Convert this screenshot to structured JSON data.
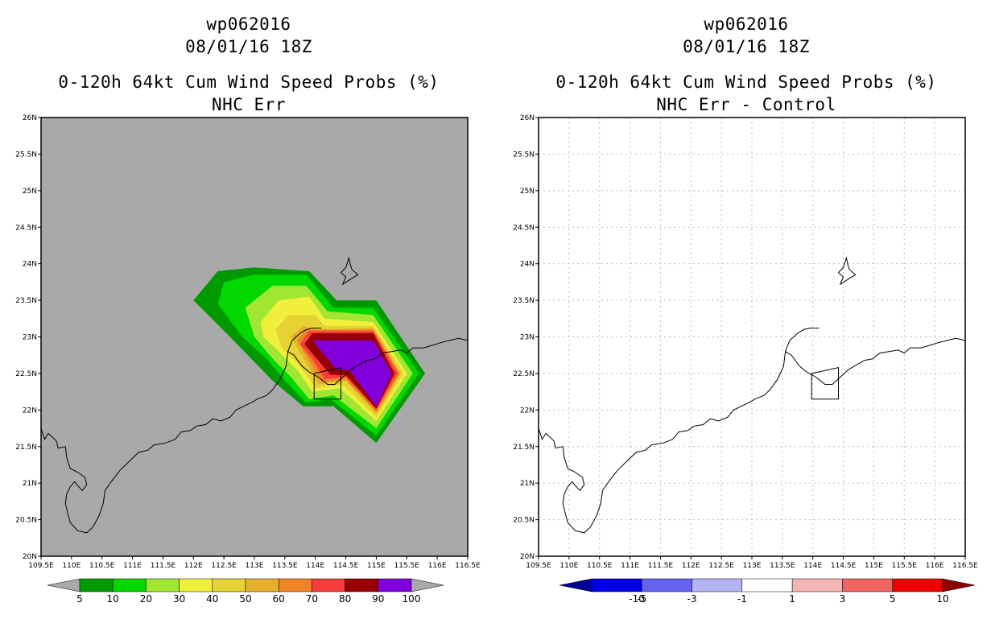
{
  "panels": [
    {
      "storm_id": "wp062016",
      "datetime": "08/01/16 18Z",
      "product": "0-120h 64kt Cum Wind Speed Probs (%)",
      "subtitle": "NHC Err",
      "background": "#a9a9a9",
      "grid": false,
      "colorbar": {
        "labels": [
          "5",
          "10",
          "20",
          "30",
          "40",
          "50",
          "60",
          "70",
          "80",
          "90",
          "100"
        ],
        "colors": [
          "#009a00",
          "#00d800",
          "#a0e632",
          "#f0f03c",
          "#e6d232",
          "#e6af2d",
          "#f08228",
          "#fa3c3c",
          "#960000",
          "#8200dc"
        ],
        "under_color": "#a9a9a9",
        "over_color": "#a9a9a9"
      }
    },
    {
      "storm_id": "wp062016",
      "datetime": "08/01/16 18Z",
      "product": "0-120h 64kt Cum Wind Speed Probs (%)",
      "subtitle": "NHC Err - Control",
      "background": "#ffffff",
      "grid": true,
      "colorbar": {
        "labels": [
          "-10",
          "-5",
          "-3",
          "-1",
          "1",
          "3",
          "5",
          "10"
        ],
        "colors": [
          "#0000e6",
          "#6464f0",
          "#b4b4f5",
          "#ffffff",
          "#f5b4b4",
          "#f06464",
          "#f00000"
        ],
        "under_color": "#000096",
        "over_color": "#8b0000"
      }
    }
  ],
  "axes": {
    "lon_labels": [
      "109.5E",
      "110E",
      "110.5E",
      "111E",
      "111.5E",
      "112E",
      "112.5E",
      "113E",
      "113.5E",
      "114E",
      "114.5E",
      "115E",
      "115.5E",
      "116E",
      "116.5E"
    ],
    "lat_labels": [
      "20N",
      "20.5N",
      "21N",
      "21.5N",
      "22N",
      "22.5N",
      "23N",
      "23.5N",
      "24N",
      "24.5N",
      "25N",
      "25.5N",
      "26N"
    ],
    "lon_range": [
      109.5,
      116.5
    ],
    "lat_range": [
      20,
      26
    ]
  },
  "probability_contours": [
    {
      "level": 5,
      "color": "#009a00",
      "polygon": [
        [
          112.0,
          23.5
        ],
        [
          112.4,
          23.9
        ],
        [
          113.0,
          23.95
        ],
        [
          113.9,
          23.9
        ],
        [
          114.35,
          23.5
        ],
        [
          115.0,
          23.5
        ],
        [
          115.8,
          22.5
        ],
        [
          115.0,
          21.55
        ],
        [
          114.3,
          22.05
        ],
        [
          113.8,
          22.05
        ],
        [
          113.3,
          22.4
        ],
        [
          112.6,
          23.0
        ]
      ]
    },
    {
      "level": 10,
      "color": "#00d800",
      "polygon": [
        [
          112.4,
          23.45
        ],
        [
          112.5,
          23.75
        ],
        [
          113.0,
          23.85
        ],
        [
          113.85,
          23.85
        ],
        [
          114.3,
          23.4
        ],
        [
          114.95,
          23.4
        ],
        [
          115.7,
          22.5
        ],
        [
          115.0,
          21.65
        ],
        [
          114.25,
          22.15
        ],
        [
          113.85,
          22.1
        ],
        [
          113.5,
          22.4
        ],
        [
          113.2,
          22.7
        ],
        [
          112.8,
          23.0
        ]
      ]
    },
    {
      "level": 20,
      "color": "#a0e632",
      "polygon": [
        [
          112.85,
          23.4
        ],
        [
          113.3,
          23.7
        ],
        [
          113.85,
          23.7
        ],
        [
          114.2,
          23.35
        ],
        [
          114.95,
          23.3
        ],
        [
          115.6,
          22.5
        ],
        [
          115.0,
          21.75
        ],
        [
          114.3,
          22.2
        ],
        [
          113.9,
          22.15
        ],
        [
          113.6,
          22.45
        ],
        [
          113.3,
          22.7
        ],
        [
          113.0,
          23.0
        ]
      ]
    },
    {
      "level": 30,
      "color": "#f0f03c",
      "polygon": [
        [
          113.1,
          23.2
        ],
        [
          113.4,
          23.5
        ],
        [
          113.9,
          23.55
        ],
        [
          114.15,
          23.25
        ],
        [
          114.95,
          23.2
        ],
        [
          115.5,
          22.5
        ],
        [
          115.0,
          21.85
        ],
        [
          114.4,
          22.3
        ],
        [
          113.95,
          22.25
        ],
        [
          113.7,
          22.55
        ],
        [
          113.4,
          22.8
        ],
        [
          113.15,
          23.0
        ]
      ]
    },
    {
      "level": 40,
      "color": "#e6d232",
      "polygon": [
        [
          113.35,
          23.1
        ],
        [
          113.55,
          23.3
        ],
        [
          114.0,
          23.3
        ],
        [
          114.15,
          23.15
        ],
        [
          114.95,
          23.15
        ],
        [
          115.45,
          22.5
        ],
        [
          115.0,
          21.9
        ],
        [
          114.45,
          22.35
        ],
        [
          114.0,
          22.3
        ],
        [
          113.75,
          22.6
        ],
        [
          113.45,
          22.85
        ]
      ]
    },
    {
      "level": 50,
      "color": "#e6af2d",
      "polygon": [
        [
          113.6,
          23.0
        ],
        [
          113.8,
          23.15
        ],
        [
          114.05,
          23.1
        ],
        [
          114.95,
          23.12
        ],
        [
          115.4,
          22.5
        ],
        [
          115.0,
          21.95
        ],
        [
          114.5,
          22.4
        ],
        [
          114.05,
          22.35
        ],
        [
          113.85,
          22.65
        ]
      ]
    },
    {
      "level": 60,
      "color": "#f08228",
      "polygon": [
        [
          113.7,
          22.95
        ],
        [
          113.85,
          23.1
        ],
        [
          114.95,
          23.1
        ],
        [
          115.38,
          22.5
        ],
        [
          115.0,
          21.97
        ],
        [
          114.5,
          22.42
        ],
        [
          114.1,
          22.38
        ],
        [
          113.9,
          22.68
        ]
      ]
    },
    {
      "level": 70,
      "color": "#fa3c3c",
      "polygon": [
        [
          113.75,
          22.9
        ],
        [
          113.9,
          23.08
        ],
        [
          114.95,
          23.08
        ],
        [
          115.35,
          22.5
        ],
        [
          115.0,
          22.0
        ],
        [
          114.5,
          22.45
        ],
        [
          114.15,
          22.42
        ],
        [
          113.95,
          22.7
        ]
      ]
    },
    {
      "level": 80,
      "color": "#960000",
      "polygon": [
        [
          113.82,
          22.9
        ],
        [
          113.95,
          23.05
        ],
        [
          114.95,
          23.05
        ],
        [
          115.3,
          22.5
        ],
        [
          115.0,
          22.02
        ],
        [
          114.5,
          22.48
        ],
        [
          114.25,
          22.48
        ]
      ]
    },
    {
      "level": 90,
      "color": "#8200dc",
      "polygon": [
        [
          113.95,
          22.95
        ],
        [
          114.95,
          22.95
        ],
        [
          115.25,
          22.5
        ],
        [
          115.0,
          22.05
        ],
        [
          114.55,
          22.55
        ],
        [
          114.35,
          22.55
        ]
      ]
    }
  ]
}
